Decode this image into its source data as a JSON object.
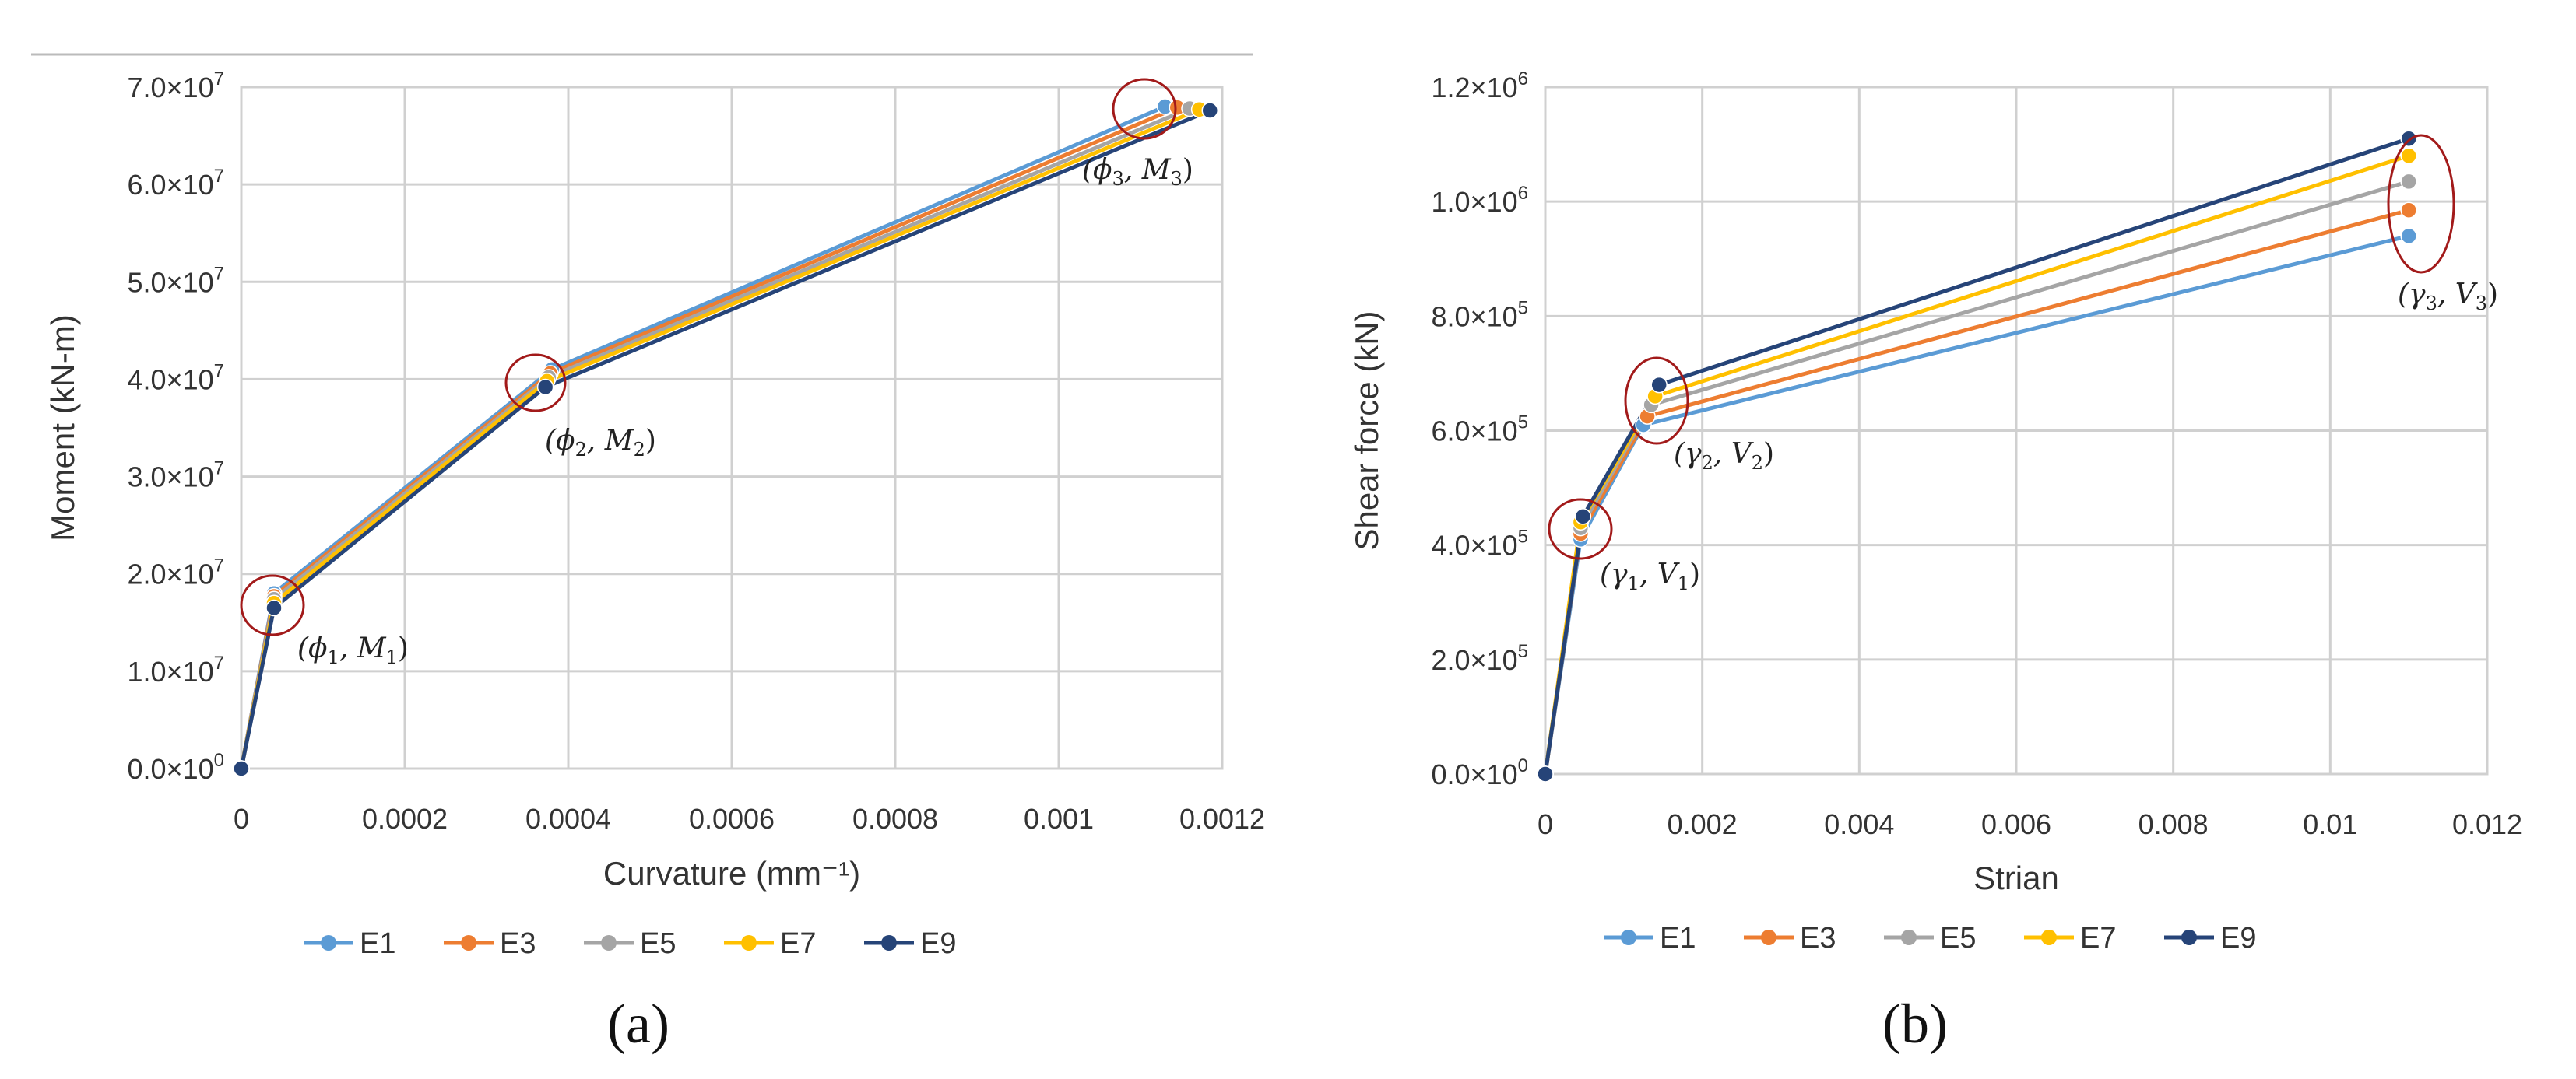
{
  "chart_data": [
    {
      "type": "line",
      "panel_label": "(a)",
      "title": "",
      "xlabel": "Curvature (mm⁻¹)",
      "ylabel": "Moment (kN-m)",
      "xlim": [
        0,
        0.0012
      ],
      "ylim": [
        0,
        70000000
      ],
      "grid": true,
      "legend_position": "bottom",
      "x_ticks": [
        {
          "value": 0,
          "label": "0"
        },
        {
          "value": 0.0002,
          "label": "0.0002"
        },
        {
          "value": 0.0004,
          "label": "0.0004"
        },
        {
          "value": 0.0006,
          "label": "0.0006"
        },
        {
          "value": 0.0008,
          "label": "0.0008"
        },
        {
          "value": 0.001,
          "label": "0.001"
        },
        {
          "value": 0.0012,
          "label": "0.0012"
        }
      ],
      "y_ticks": [
        {
          "value": 0,
          "mant": "0.0",
          "exp": "0"
        },
        {
          "value": 10000000,
          "mant": "1.0",
          "exp": "7"
        },
        {
          "value": 20000000,
          "mant": "2.0",
          "exp": "7"
        },
        {
          "value": 30000000,
          "mant": "3.0",
          "exp": "7"
        },
        {
          "value": 40000000,
          "mant": "4.0",
          "exp": "7"
        },
        {
          "value": 50000000,
          "mant": "5.0",
          "exp": "7"
        },
        {
          "value": 60000000,
          "mant": "6.0",
          "exp": "7"
        },
        {
          "value": 70000000,
          "mant": "7.0",
          "exp": "7"
        }
      ],
      "series": [
        {
          "name": "E1",
          "color": "#5b9bd5",
          "x": [
            0,
            4e-05,
            0.00038,
            0.00113
          ],
          "y": [
            0,
            18000000,
            41000000,
            68000000
          ]
        },
        {
          "name": "E3",
          "color": "#ed7d31",
          "x": [
            0,
            4e-05,
            0.000378,
            0.001145
          ],
          "y": [
            0,
            17700000,
            40600000,
            67900000
          ]
        },
        {
          "name": "E5",
          "color": "#a5a5a5",
          "x": [
            0,
            4e-05,
            0.000376,
            0.00116
          ],
          "y": [
            0,
            17400000,
            40200000,
            67800000
          ]
        },
        {
          "name": "E7",
          "color": "#ffc000",
          "x": [
            0,
            4e-05,
            0.000374,
            0.001172
          ],
          "y": [
            0,
            17000000,
            39800000,
            67700000
          ]
        },
        {
          "name": "E9",
          "color": "#264478",
          "x": [
            0,
            4e-05,
            0.000372,
            0.001185
          ],
          "y": [
            0,
            16500000,
            39200000,
            67600000
          ]
        }
      ],
      "annotations": [
        {
          "sym": "ϕ",
          "sub": "1",
          "var": "M",
          "vsub": "1"
        },
        {
          "sym": "ϕ",
          "sub": "2",
          "var": "M",
          "vsub": "2"
        },
        {
          "sym": "ϕ",
          "sub": "3",
          "var": "M",
          "vsub": "3"
        }
      ]
    },
    {
      "type": "line",
      "panel_label": "(b)",
      "title": "",
      "xlabel": "Strian",
      "ylabel": "Shear force (kN)",
      "xlim": [
        0,
        0.012
      ],
      "ylim": [
        0,
        1200000
      ],
      "grid": true,
      "legend_position": "bottom",
      "x_ticks": [
        {
          "value": 0,
          "label": "0"
        },
        {
          "value": 0.002,
          "label": "0.002"
        },
        {
          "value": 0.004,
          "label": "0.004"
        },
        {
          "value": 0.006,
          "label": "0.006"
        },
        {
          "value": 0.008,
          "label": "0.008"
        },
        {
          "value": 0.01,
          "label": "0.01"
        },
        {
          "value": 0.012,
          "label": "0.012"
        }
      ],
      "y_ticks": [
        {
          "value": 0,
          "mant": "0.0",
          "exp": "0"
        },
        {
          "value": 200000,
          "mant": "2.0",
          "exp": "5"
        },
        {
          "value": 400000,
          "mant": "4.0",
          "exp": "5"
        },
        {
          "value": 600000,
          "mant": "6.0",
          "exp": "5"
        },
        {
          "value": 800000,
          "mant": "8.0",
          "exp": "5"
        },
        {
          "value": 1000000,
          "mant": "1.0",
          "exp": "6"
        },
        {
          "value": 1200000,
          "mant": "1.2",
          "exp": "6"
        }
      ],
      "series": [
        {
          "name": "E1",
          "color": "#5b9bd5",
          "x": [
            0,
            0.00045,
            0.00125,
            0.011
          ],
          "y": [
            0,
            410000,
            610000,
            940000
          ]
        },
        {
          "name": "E3",
          "color": "#ed7d31",
          "x": [
            0,
            0.00045,
            0.0013,
            0.011
          ],
          "y": [
            0,
            420000,
            625000,
            985000
          ]
        },
        {
          "name": "E5",
          "color": "#a5a5a5",
          "x": [
            0,
            0.00045,
            0.00135,
            0.011
          ],
          "y": [
            0,
            430000,
            645000,
            1035000
          ]
        },
        {
          "name": "E7",
          "color": "#ffc000",
          "x": [
            0,
            0.00045,
            0.0014,
            0.011
          ],
          "y": [
            0,
            440000,
            660000,
            1080000
          ]
        },
        {
          "name": "E9",
          "color": "#264478",
          "x": [
            0,
            0.00048,
            0.00145,
            0.011
          ],
          "y": [
            0,
            450000,
            680000,
            1110000
          ]
        }
      ],
      "annotations": [
        {
          "sym": "γ",
          "sub": "1",
          "var": "V",
          "vsub": "1"
        },
        {
          "sym": "γ",
          "sub": "2",
          "var": "V",
          "vsub": "2"
        },
        {
          "sym": "γ",
          "sub": "3",
          "var": "V",
          "vsub": "3"
        }
      ]
    }
  ]
}
